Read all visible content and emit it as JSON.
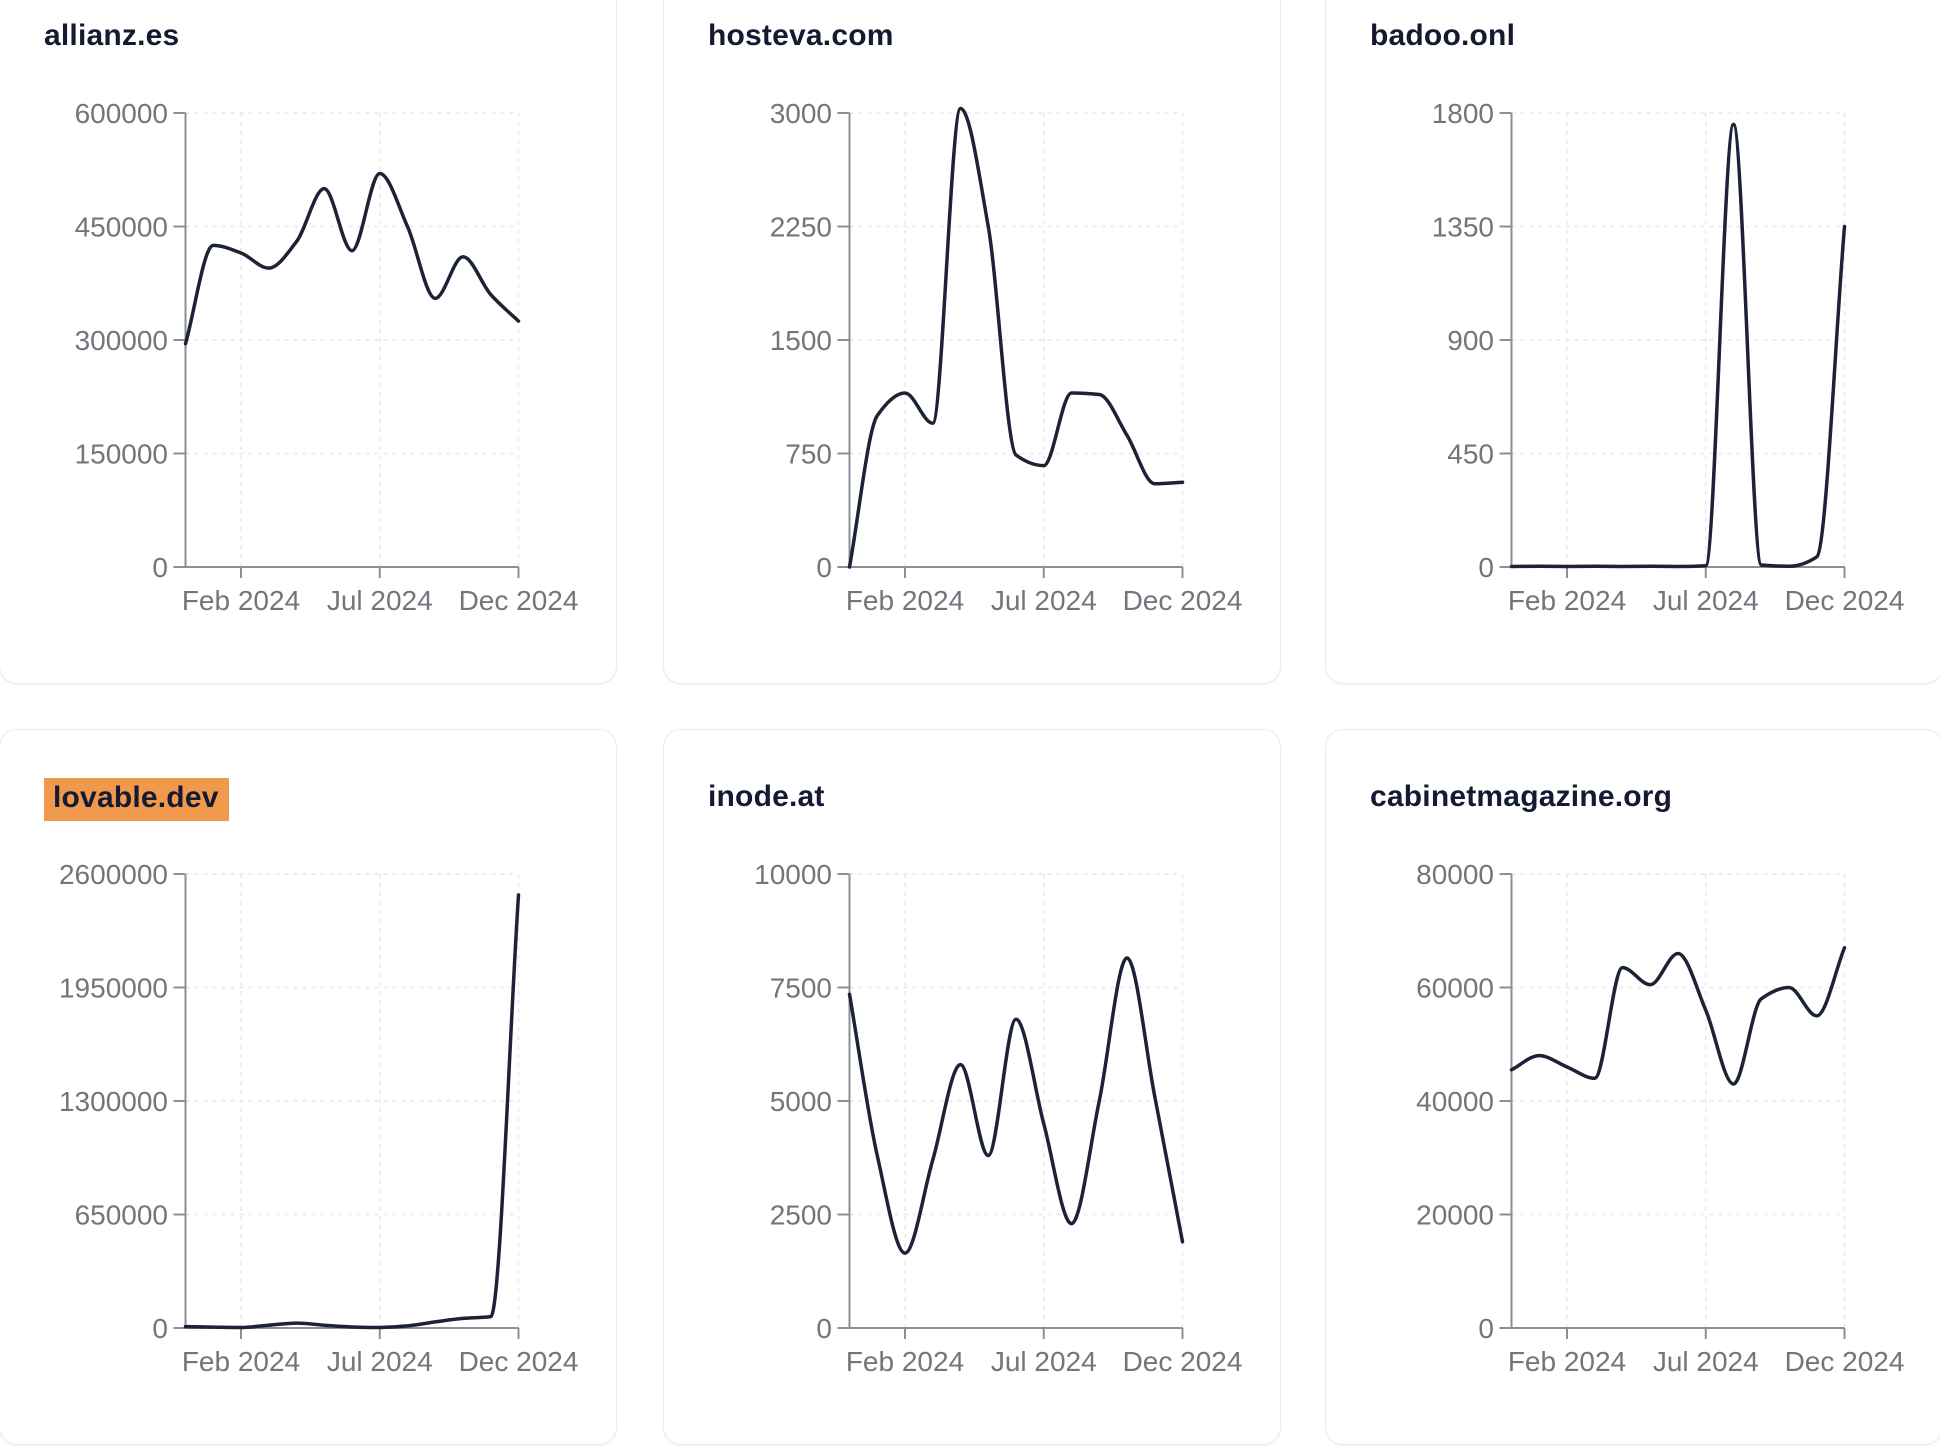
{
  "page": {
    "background": "#ffffff"
  },
  "style": {
    "line_color": "#1c2337",
    "title_color": "#131a31",
    "highlight_color": "#f0994d",
    "axis_color": "#8c8f96",
    "grid_color": "#e8e8ee",
    "tick_label_color": "#74757c",
    "card_border_color": "#e8ebf1"
  },
  "chart_data": [
    {
      "type": "line",
      "title": "allianz.es",
      "title_highlighted": false,
      "x": [
        "Dec 2023",
        "Jan 2024",
        "Feb 2024",
        "Mar 2024",
        "Apr 2024",
        "May 2024",
        "Jun 2024",
        "Jul 2024",
        "Aug 2024",
        "Sep 2024",
        "Oct 2024",
        "Nov 2024",
        "Dec 2024"
      ],
      "values": [
        295000,
        425000,
        415000,
        395000,
        430000,
        500000,
        418000,
        520000,
        450000,
        355000,
        410000,
        360000,
        325000
      ],
      "yticks": [
        0,
        150000,
        300000,
        450000,
        600000
      ],
      "ylim": [
        0,
        600000
      ],
      "xticks": [
        "Feb 2024",
        "Jul 2024",
        "Dec 2024"
      ],
      "xtick_indices": [
        2,
        7,
        12
      ],
      "grid": true,
      "legend": "none"
    },
    {
      "type": "line",
      "title": "hosteva.com",
      "title_highlighted": false,
      "x": [
        "Dec 2023",
        "Jan 2024",
        "Feb 2024",
        "Mar 2024",
        "Apr 2024",
        "May 2024",
        "Jun 2024",
        "Jul 2024",
        "Aug 2024",
        "Sep 2024",
        "Oct 2024",
        "Nov 2024",
        "Dec 2024"
      ],
      "values": [
        0,
        1000,
        1150,
        950,
        3030,
        2250,
        740,
        670,
        1150,
        1140,
        870,
        550,
        560
      ],
      "yticks": [
        0,
        750,
        1500,
        2250,
        3000
      ],
      "ylim": [
        0,
        3000
      ],
      "xticks": [
        "Feb 2024",
        "Jul 2024",
        "Dec 2024"
      ],
      "xtick_indices": [
        2,
        7,
        12
      ],
      "grid": true,
      "legend": "none"
    },
    {
      "type": "line",
      "title": "badoo.onl",
      "title_highlighted": false,
      "x": [
        "Dec 2023",
        "Jan 2024",
        "Feb 2024",
        "Mar 2024",
        "Apr 2024",
        "May 2024",
        "Jun 2024",
        "Jul 2024",
        "Aug 2024",
        "Sep 2024",
        "Oct 2024",
        "Nov 2024",
        "Dec 2024"
      ],
      "values": [
        2,
        3,
        2,
        3,
        2,
        3,
        2,
        5,
        1755,
        8,
        3,
        40,
        1350
      ],
      "yticks": [
        0,
        450,
        900,
        1350,
        1800
      ],
      "ylim": [
        0,
        1800
      ],
      "xticks": [
        "Feb 2024",
        "Jul 2024",
        "Dec 2024"
      ],
      "xtick_indices": [
        2,
        7,
        12
      ],
      "grid": true,
      "legend": "none"
    },
    {
      "type": "line",
      "title": "lovable.dev",
      "title_highlighted": true,
      "x": [
        "Dec 2023",
        "Jan 2024",
        "Feb 2024",
        "Mar 2024",
        "Apr 2024",
        "May 2024",
        "Jun 2024",
        "Jul 2024",
        "Aug 2024",
        "Sep 2024",
        "Oct 2024",
        "Nov 2024",
        "Dec 2024"
      ],
      "values": [
        8000,
        5000,
        3000,
        16000,
        28000,
        16000,
        6000,
        3000,
        12000,
        35000,
        55000,
        65000,
        2480000
      ],
      "yticks": [
        0,
        650000,
        1300000,
        1950000,
        2600000
      ],
      "ylim": [
        0,
        2600000
      ],
      "xticks": [
        "Feb 2024",
        "Jul 2024",
        "Dec 2024"
      ],
      "xtick_indices": [
        2,
        7,
        12
      ],
      "grid": true,
      "legend": "none"
    },
    {
      "type": "line",
      "title": "inode.at",
      "title_highlighted": false,
      "x": [
        "Dec 2023",
        "Jan 2024",
        "Feb 2024",
        "Mar 2024",
        "Apr 2024",
        "May 2024",
        "Jun 2024",
        "Jul 2024",
        "Aug 2024",
        "Sep 2024",
        "Oct 2024",
        "Nov 2024",
        "Dec 2024"
      ],
      "values": [
        7350,
        3800,
        1650,
        3700,
        5800,
        3800,
        6800,
        4500,
        2300,
        5000,
        8150,
        5100,
        1900
      ],
      "yticks": [
        0,
        2500,
        5000,
        7500,
        10000
      ],
      "ylim": [
        0,
        10000
      ],
      "xticks": [
        "Feb 2024",
        "Jul 2024",
        "Dec 2024"
      ],
      "xtick_indices": [
        2,
        7,
        12
      ],
      "grid": true,
      "legend": "none"
    },
    {
      "type": "line",
      "title": "cabinetmagazine.org",
      "title_highlighted": false,
      "x": [
        "Dec 2023",
        "Jan 2024",
        "Feb 2024",
        "Mar 2024",
        "Apr 2024",
        "May 2024",
        "Jun 2024",
        "Jul 2024",
        "Aug 2024",
        "Sep 2024",
        "Oct 2024",
        "Nov 2024",
        "Dec 2024"
      ],
      "values": [
        45500,
        48000,
        46000,
        44000,
        63500,
        60500,
        66000,
        56000,
        43000,
        58000,
        60000,
        55000,
        67000
      ],
      "yticks": [
        0,
        20000,
        40000,
        60000,
        80000
      ],
      "ylim": [
        0,
        80000
      ],
      "xticks": [
        "Feb 2024",
        "Jul 2024",
        "Dec 2024"
      ],
      "xtick_indices": [
        2,
        7,
        12
      ],
      "grid": true,
      "legend": "none"
    }
  ]
}
